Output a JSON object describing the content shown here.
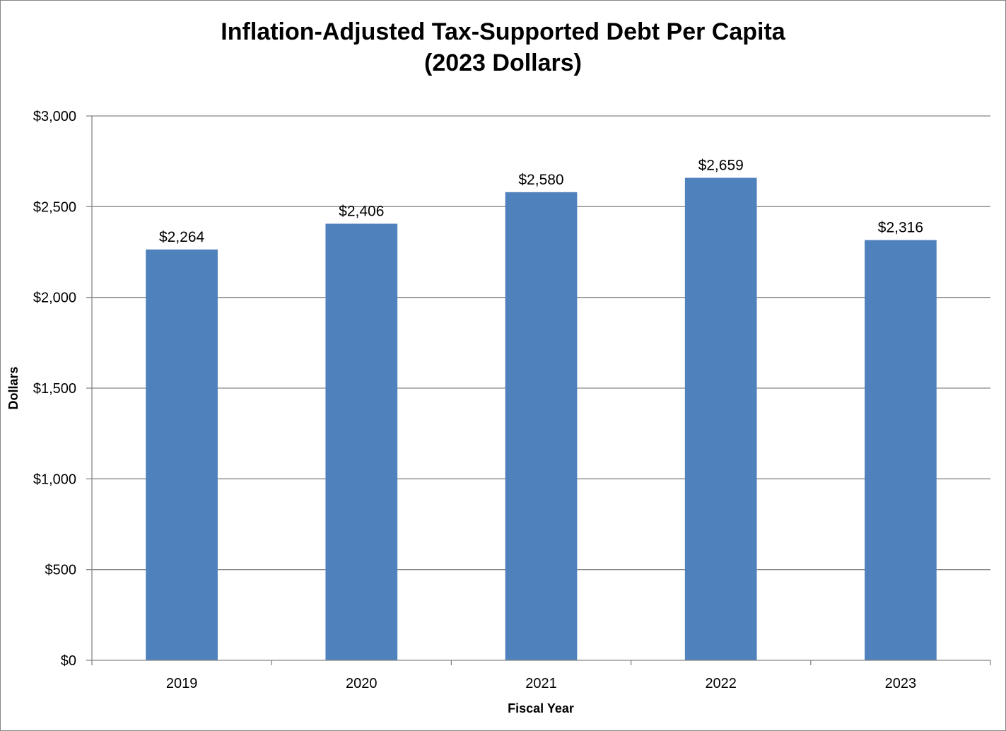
{
  "chart_data": {
    "type": "bar",
    "title": "Inflation-Adjusted Tax-Supported Debt Per Capita",
    "subtitle": "(2023 Dollars)",
    "xlabel": "Fiscal Year",
    "ylabel": "Dollars",
    "categories": [
      "2019",
      "2020",
      "2021",
      "2022",
      "2023"
    ],
    "values": [
      2264,
      2406,
      2580,
      2659,
      2316
    ],
    "data_labels": [
      "$2,264",
      "$2,406",
      "$2,580",
      "$2,659",
      "$2,316"
    ],
    "ylim": [
      0,
      3000
    ],
    "yticks": [
      0,
      500,
      1000,
      1500,
      2000,
      2500,
      3000
    ],
    "ytick_labels": [
      "$0",
      "$500",
      "$1,000",
      "$1,500",
      "$2,000",
      "$2,500",
      "$3,000"
    ],
    "grid": true,
    "bar_color": "#4F81BD",
    "gridline_color": "#868686"
  }
}
